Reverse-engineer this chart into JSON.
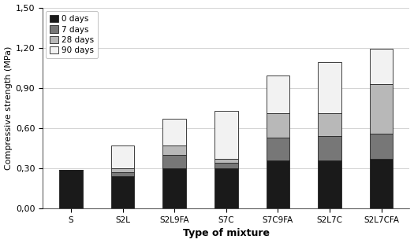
{
  "categories": [
    "S",
    "S2L",
    "S2L9FA",
    "S7C",
    "S7C9FA",
    "S2L7C",
    "S2L7CFA"
  ],
  "days_labels": [
    "0 days",
    "7 days",
    "28 days",
    "90 days"
  ],
  "colors": [
    "#1a1a1a",
    "#777777",
    "#b8b8b8",
    "#f2f2f2"
  ],
  "edgecolors": "#222222",
  "values": {
    "0 days": [
      0.29,
      0.24,
      0.3,
      0.3,
      0.36,
      0.36,
      0.37
    ],
    "7 days": [
      0.0,
      0.03,
      0.1,
      0.04,
      0.17,
      0.18,
      0.19
    ],
    "28 days": [
      0.0,
      0.03,
      0.07,
      0.03,
      0.18,
      0.17,
      0.37
    ],
    "90 days": [
      0.0,
      0.17,
      0.2,
      0.36,
      0.28,
      0.38,
      0.26
    ]
  },
  "ylabel": "Compressive strength (MPa)",
  "xlabel": "Type of mixture",
  "ylim": [
    0.0,
    1.5
  ],
  "yticks": [
    0.0,
    0.3,
    0.6,
    0.9,
    1.2,
    1.5
  ],
  "ytick_labels": [
    "0,00",
    "0,30",
    "0,60",
    "0,90",
    "1,20",
    "1,50"
  ],
  "legend_loc": "upper left",
  "bar_width": 0.45,
  "figure_facecolor": "#ffffff",
  "grid_color": "#cccccc",
  "figsize": [
    5.25,
    3.09
  ],
  "dpi": 100
}
